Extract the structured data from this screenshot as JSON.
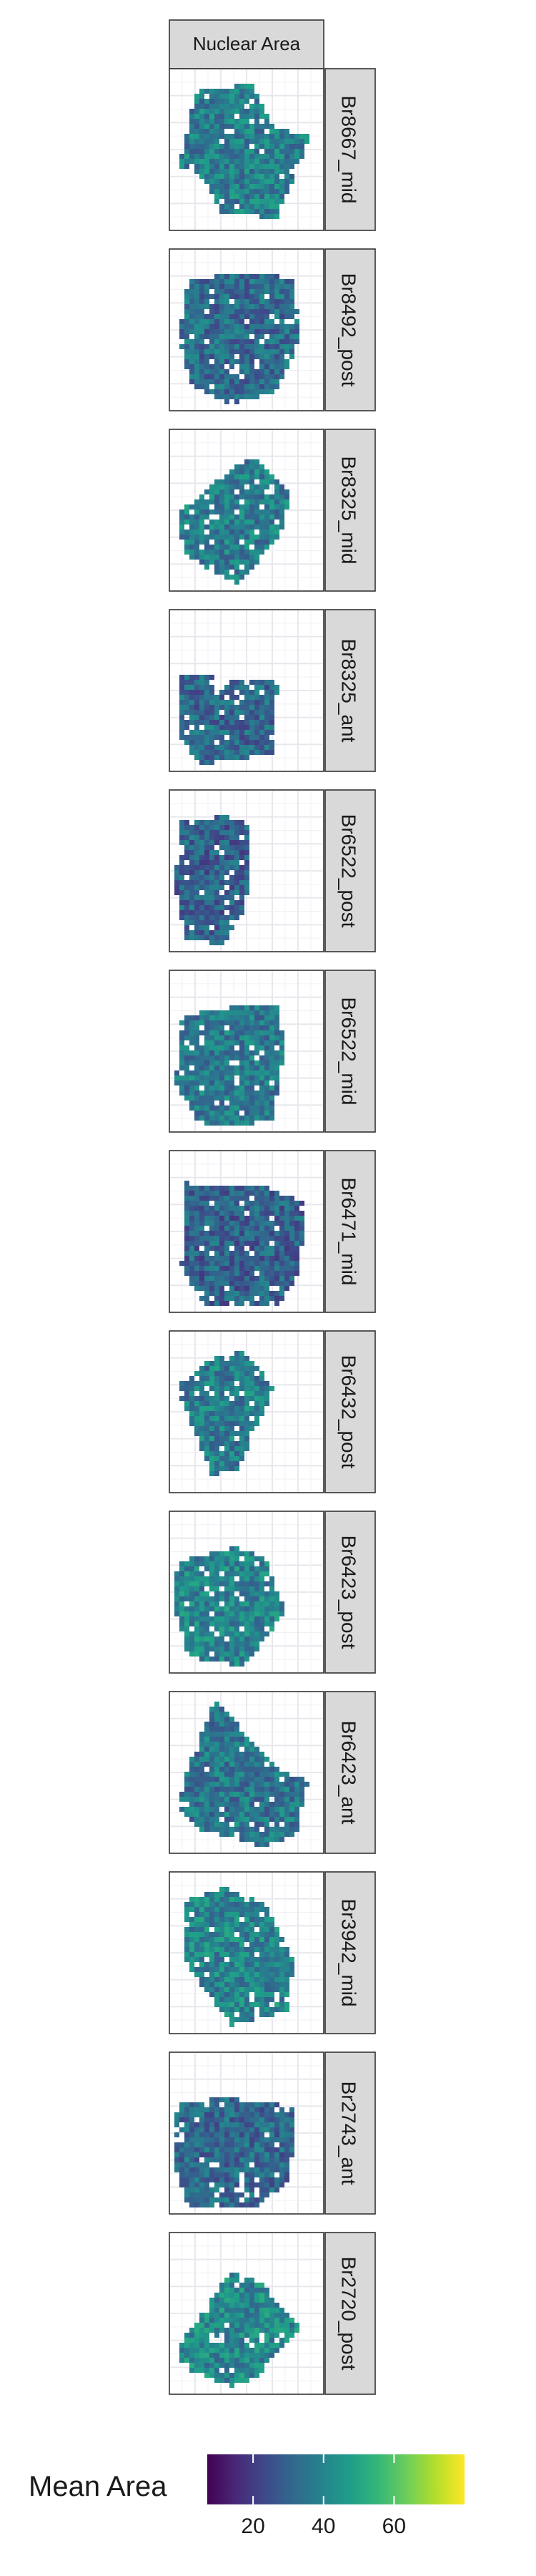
{
  "chart_data": {
    "type": "heatmap",
    "facet_column_label": "Nuclear Area",
    "panels": [
      {
        "label": "Br8667_mid",
        "mean_area": 38
      },
      {
        "label": "Br8492_post",
        "mean_area": 33
      },
      {
        "label": "Br8325_mid",
        "mean_area": 38
      },
      {
        "label": "Br8325_ant",
        "mean_area": 32
      },
      {
        "label": "Br6522_post",
        "mean_area": 30
      },
      {
        "label": "Br6522_mid",
        "mean_area": 37
      },
      {
        "label": "Br6471_mid",
        "mean_area": 30
      },
      {
        "label": "Br6432_post",
        "mean_area": 38
      },
      {
        "label": "Br6423_post",
        "mean_area": 40
      },
      {
        "label": "Br6423_ant",
        "mean_area": 36
      },
      {
        "label": "Br3942_mid",
        "mean_area": 40
      },
      {
        "label": "Br2743_ant",
        "mean_area": 32
      },
      {
        "label": "Br2720_post",
        "mean_area": 41
      }
    ],
    "legend": {
      "title": "Mean Area",
      "ticks": [
        "20",
        "40",
        "60"
      ],
      "tick_values": [
        20,
        40,
        60
      ],
      "range": [
        7,
        80
      ],
      "palette": [
        "#440154",
        "#482878",
        "#3e4989",
        "#31688e",
        "#26828e",
        "#1f9e89",
        "#35b779",
        "#6ece58",
        "#b5de2b",
        "#fde725"
      ]
    },
    "grid": true,
    "legend_position": "bottom"
  }
}
